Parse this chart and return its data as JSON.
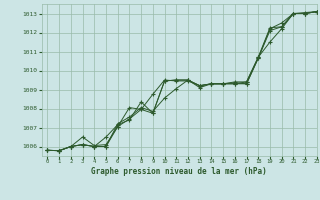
{
  "title": "Graphe pression niveau de la mer (hPa)",
  "background_color": "#cce5e5",
  "grid_color": "#99bbaa",
  "line_color": "#2d5a2d",
  "xlim": [
    -0.5,
    23
  ],
  "ylim": [
    1005.5,
    1013.5
  ],
  "xticks": [
    0,
    1,
    2,
    3,
    4,
    5,
    6,
    7,
    8,
    9,
    10,
    11,
    12,
    13,
    14,
    15,
    16,
    17,
    18,
    19,
    20,
    21,
    22,
    23
  ],
  "yticks": [
    1006,
    1007,
    1008,
    1009,
    1010,
    1011,
    1012,
    1013
  ],
  "lines": [
    [
      1005.8,
      1005.78,
      1006.0,
      1006.1,
      1006.0,
      1006.5,
      1007.15,
      1007.4,
      1008.35,
      1007.75,
      1009.45,
      1009.5,
      1009.5,
      1009.1,
      1009.3,
      1009.3,
      1009.35,
      1009.3,
      1010.65,
      1012.2,
      1012.5,
      1013.0,
      1013.0,
      1013.1
    ],
    [
      1005.8,
      1005.78,
      1006.0,
      1006.5,
      1006.05,
      1006.1,
      1007.05,
      1008.05,
      1007.95,
      1008.75,
      1009.5,
      1009.45,
      1009.45,
      1009.2,
      1009.3,
      1009.3,
      1009.3,
      1009.4,
      1010.7,
      1012.25,
      1012.3,
      1013.0,
      1013.05,
      1013.1
    ],
    [
      1005.8,
      1005.78,
      1006.0,
      1006.1,
      1006.0,
      1006.0,
      1007.2,
      1007.55,
      1008.05,
      1007.85,
      1008.55,
      1009.05,
      1009.5,
      1009.2,
      1009.3,
      1009.3,
      1009.4,
      1009.4,
      1010.7,
      1011.5,
      1012.2,
      1013.0,
      1013.0,
      1013.1
    ],
    [
      1005.8,
      1005.78,
      1006.0,
      1006.1,
      1006.0,
      1006.0,
      1007.05,
      1007.45,
      1007.95,
      1007.75,
      1009.45,
      1009.5,
      1009.5,
      1009.2,
      1009.3,
      1009.3,
      1009.3,
      1009.3,
      1010.65,
      1012.1,
      1012.3,
      1013.0,
      1013.0,
      1013.1
    ]
  ]
}
